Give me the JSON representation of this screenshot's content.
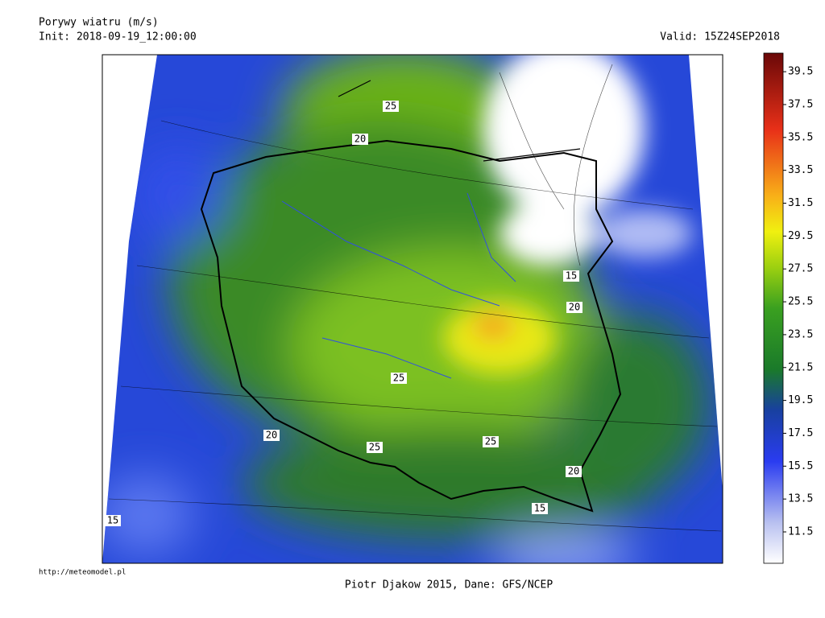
{
  "header": {
    "title": "Porywy wiatru (m/s)",
    "init": "Init: 2018-09-19_12:00:00",
    "valid": "Valid: 15Z24SEP2018"
  },
  "colorbar": {
    "labels": [
      "11.5",
      "13.5",
      "15.5",
      "17.5",
      "19.5",
      "21.5",
      "23.5",
      "25.5",
      "27.5",
      "29.5",
      "31.5",
      "33.5",
      "35.5",
      "37.5",
      "39.5"
    ]
  },
  "map": {
    "contour_labels": [
      "25",
      "20",
      "15",
      "20",
      "25",
      "20",
      "25",
      "25",
      "20",
      "15",
      "15"
    ]
  },
  "footer": {
    "url": "http://meteomodel.pl",
    "credit": "Piotr Djakow 2015, Dane: GFS/NCEP"
  }
}
